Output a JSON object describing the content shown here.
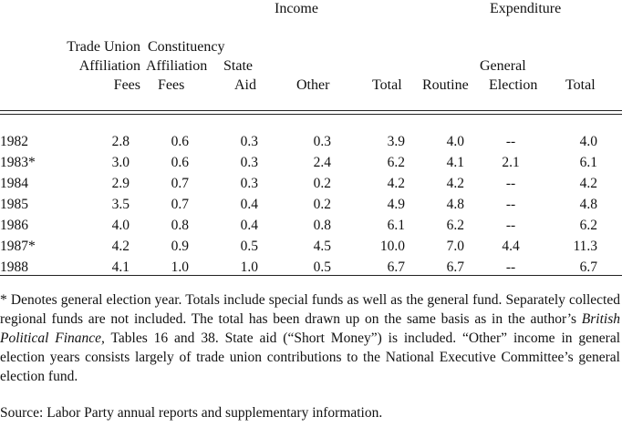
{
  "header": {
    "income_group": "Income",
    "expenditure_group": "Expenditure",
    "col_trade_union": [
      "Trade Union",
      "Affiliation",
      "Fees"
    ],
    "col_constituency": [
      "Constituency",
      "Affiliation",
      "Fees"
    ],
    "col_state_aid": [
      "State",
      "Aid"
    ],
    "col_other": "Other",
    "col_income_total": "Total",
    "col_routine": "Routine",
    "col_general_election": [
      "General",
      "Election"
    ],
    "col_expenditure_total": "Total"
  },
  "rows": [
    {
      "year": "1982",
      "tu": "2.8",
      "con": "0.6",
      "state": "0.3",
      "other": "0.3",
      "inc_total": "3.9",
      "routine": "4.0",
      "gen": "--",
      "exp_total": "4.0"
    },
    {
      "year": "1983*",
      "tu": "3.0",
      "con": "0.6",
      "state": "0.3",
      "other": "2.4",
      "inc_total": "6.2",
      "routine": "4.1",
      "gen": "2.1",
      "exp_total": "6.1"
    },
    {
      "year": "1984",
      "tu": "2.9",
      "con": "0.7",
      "state": "0.3",
      "other": "0.2",
      "inc_total": "4.2",
      "routine": "4.2",
      "gen": "--",
      "exp_total": "4.2"
    },
    {
      "year": "1985",
      "tu": "3.5",
      "con": "0.7",
      "state": "0.4",
      "other": "0.2",
      "inc_total": "4.9",
      "routine": "4.8",
      "gen": "--",
      "exp_total": "4.8"
    },
    {
      "year": "1986",
      "tu": "4.0",
      "con": "0.8",
      "state": "0.4",
      "other": "0.8",
      "inc_total": "6.1",
      "routine": "6.2",
      "gen": "--",
      "exp_total": "6.2"
    },
    {
      "year": "1987*",
      "tu": "4.2",
      "con": "0.9",
      "state": "0.5",
      "other": "4.5",
      "inc_total": "10.0",
      "routine": "7.0",
      "gen": "4.4",
      "exp_total": "11.3"
    },
    {
      "year": "1988",
      "tu": "4.1",
      "con": "1.0",
      "state": "1.0",
      "other": "0.5",
      "inc_total": "6.7",
      "routine": "6.7",
      "gen": "--",
      "exp_total": "6.7"
    }
  ],
  "footnote": {
    "part1": "* Denotes general election year. Totals include special funds as well as the general fund. Separately collected regional funds are not included. The total has been drawn up on the same basis as in the author’s ",
    "book_title": "British Political Finance,",
    "part2": " Tables 16 and 38. State aid (“Short Money”) is included. “Other” income in general election years consists largely of trade union contributions to the National Executive Committee’s general election fund."
  },
  "source": "Source: Labor Party annual reports and supplementary information."
}
